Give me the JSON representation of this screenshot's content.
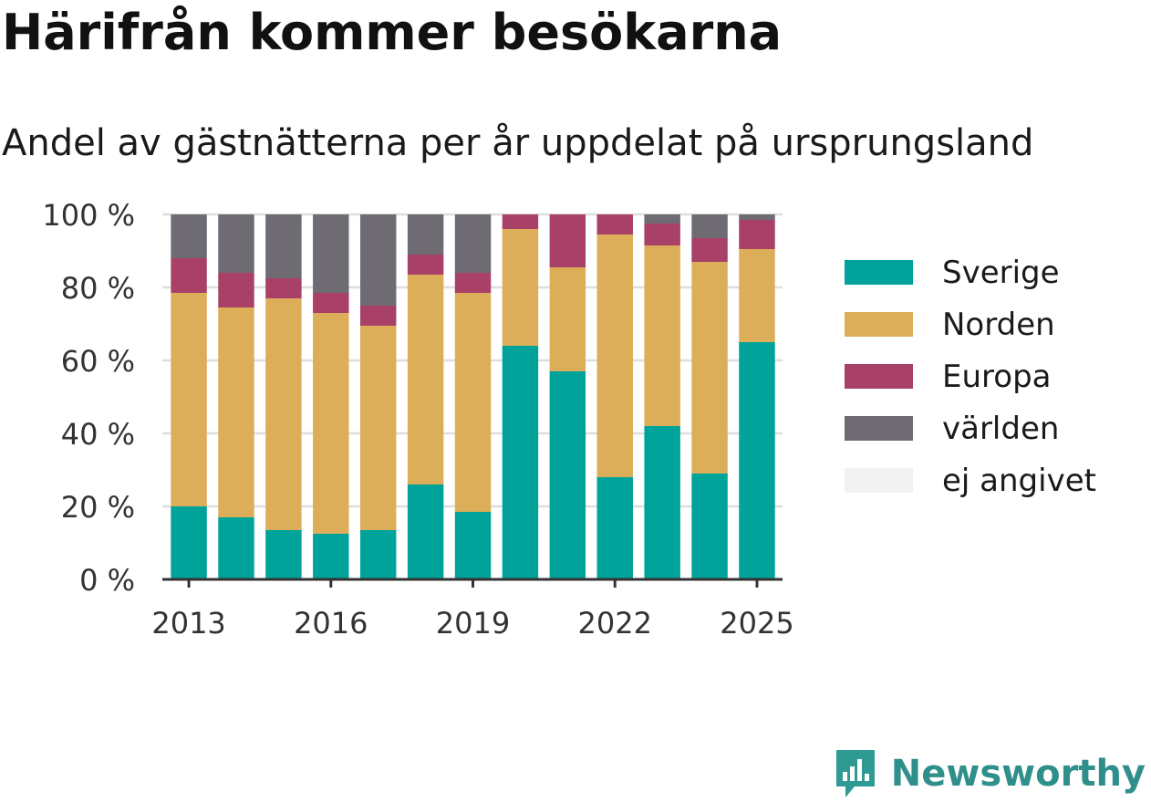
{
  "header": {
    "title": "Härifrån kommer besökarna",
    "subtitle": "Andel av gästnätterna per år uppdelat på ursprungsland"
  },
  "brand": {
    "name": "Newsworthy",
    "icon": "bar-chart-logo-icon",
    "color": "#2f9a94"
  },
  "chart_data": {
    "type": "bar",
    "stacked": true,
    "title": "",
    "xlabel": "",
    "ylabel": "",
    "ylim": [
      0,
      100
    ],
    "y_ticks": [
      0,
      20,
      40,
      60,
      80,
      100
    ],
    "y_tick_labels": [
      "0 %",
      "20 %",
      "40 %",
      "60 %",
      "80 %",
      "100 %"
    ],
    "x_tick_labels": [
      "2013",
      "2016",
      "2019",
      "2022",
      "2025"
    ],
    "categories": [
      "2013",
      "2014",
      "2015",
      "2016",
      "2017",
      "2018",
      "2019",
      "2020",
      "2021",
      "2022",
      "2023",
      "2024",
      "2025"
    ],
    "grid": "horizontal",
    "legend_position": "right",
    "series": [
      {
        "name": "Sverige",
        "color": "#00a39a",
        "values": [
          20,
          17,
          13.5,
          12.5,
          13.5,
          26,
          18.5,
          64,
          57,
          28,
          42,
          29,
          65
        ]
      },
      {
        "name": "Norden",
        "color": "#dcae5a",
        "values": [
          58.5,
          57.5,
          63.5,
          60.5,
          56,
          57.5,
          60,
          32,
          28.5,
          66.5,
          49.5,
          58,
          25.5
        ]
      },
      {
        "name": "Europa",
        "color": "#a94068",
        "values": [
          9.5,
          9.5,
          5.5,
          5.5,
          5.5,
          5.5,
          5.5,
          4,
          14.5,
          5.5,
          6,
          6.5,
          8
        ]
      },
      {
        "name": "världen",
        "color": "#6e6b73",
        "values": [
          12,
          16,
          17.5,
          21.5,
          25,
          11,
          16,
          0,
          0,
          0,
          2.5,
          6.5,
          1.5
        ]
      },
      {
        "name": "ej angivet",
        "color": "#f2f2f2",
        "values": [
          0,
          0,
          0,
          0,
          0,
          0,
          0,
          0,
          0,
          0,
          0,
          0,
          0
        ]
      }
    ]
  }
}
